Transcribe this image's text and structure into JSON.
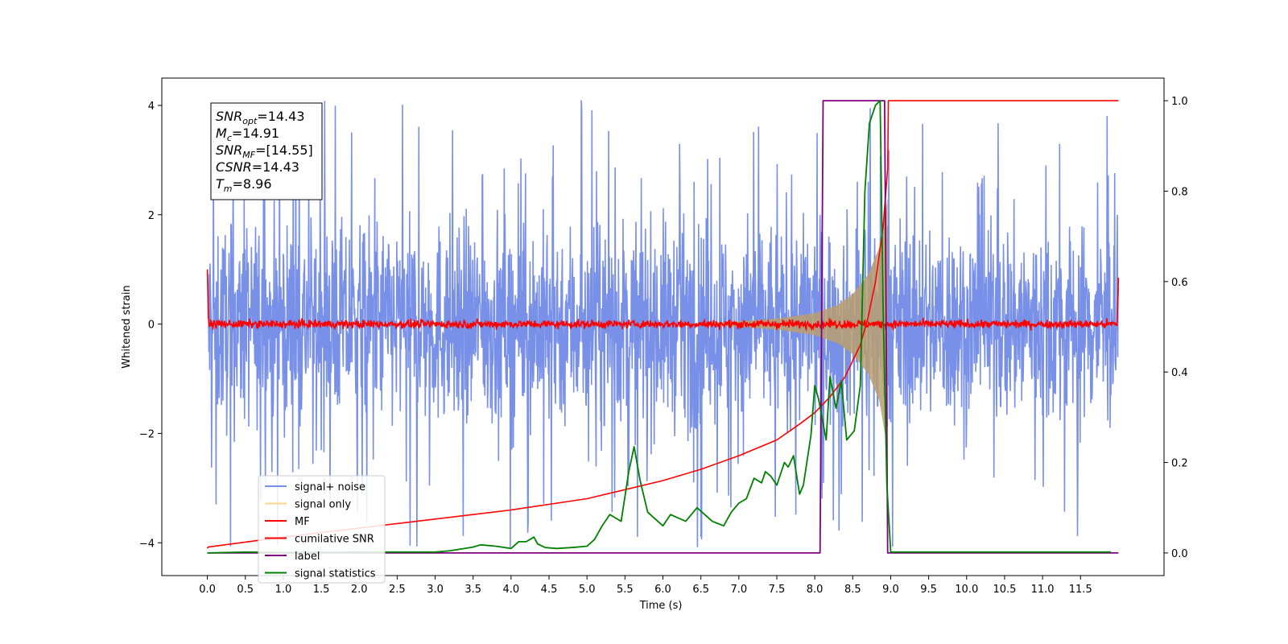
{
  "chart_data": {
    "type": "line",
    "title": "",
    "xlabel": "Time (s)",
    "ylabel": "Whitened strain",
    "y2label": "",
    "xlim": [
      -0.6,
      12.6
    ],
    "ylim": [
      -4.6,
      4.5
    ],
    "y2lim": [
      -0.05,
      1.05
    ],
    "x_tick_labels": [
      "0.0",
      "0.5",
      "1.0",
      "1.5",
      "2.0",
      "2.5",
      "3.0",
      "3.5",
      "4.0",
      "4.5",
      "5.0",
      "5.5",
      "6.0",
      "6.5",
      "7.0",
      "7.5",
      "8.0",
      "8.5",
      "9.0",
      "9.5",
      "10.0",
      "10.5",
      "11.0",
      "11.5"
    ],
    "y_tick_labels": [
      "4",
      "2",
      "0",
      "−2",
      "−4"
    ],
    "y2_tick_labels": [
      "1.0",
      "0.8",
      "0.6",
      "0.4",
      "0.2",
      "0.0"
    ],
    "grid": false,
    "legend_position": "lower left",
    "stats_box": [
      {
        "base": "SNR",
        "sub": "opt",
        "value": "=14.43"
      },
      {
        "base": "M",
        "sub": "c",
        "value": "=14.91"
      },
      {
        "base": "SNR",
        "sub": "MF",
        "value": "=[14.55]"
      },
      {
        "base": "CSNR",
        "sub": "",
        "value": "=14.43"
      },
      {
        "base": "T",
        "sub": "m",
        "value": "=8.96"
      }
    ],
    "series": [
      {
        "name": "signal+ noise",
        "color": "#7890e8",
        "axis": "left",
        "description": "noise band",
        "envelope_abs": 2.4,
        "peak_abs": 4.1,
        "t_range": [
          0,
          12
        ]
      },
      {
        "name": "signal only",
        "color": "#fdd58a",
        "axis": "left",
        "description": "chirp",
        "t_range": [
          0,
          8.96
        ],
        "envelope": {
          "x": [
            6.5,
            7.0,
            7.5,
            8.0,
            8.3,
            8.5,
            8.7,
            8.85,
            8.96
          ],
          "y": [
            0.02,
            0.05,
            0.1,
            0.2,
            0.35,
            0.55,
            0.9,
            1.4,
            2.3
          ]
        }
      },
      {
        "name": "MF",
        "color": "#ff0000",
        "axis": "left",
        "description": "matched filter output",
        "level": 0.0,
        "noise_abs": 0.12,
        "t_range": [
          0,
          12
        ]
      },
      {
        "name": "cumilative SNR",
        "color": "#ff0000",
        "axis": "right",
        "x": [
          0.0,
          0.01,
          1.0,
          2.0,
          3.0,
          4.0,
          5.0,
          5.5,
          6.0,
          6.5,
          7.0,
          7.5,
          7.8,
          8.0,
          8.2,
          8.4,
          8.6,
          8.7,
          8.8,
          8.9,
          8.96,
          8.97,
          12.0
        ],
        "y": [
          0.01,
          0.013,
          0.035,
          0.055,
          0.075,
          0.095,
          0.12,
          0.14,
          0.16,
          0.185,
          0.215,
          0.25,
          0.285,
          0.31,
          0.345,
          0.39,
          0.46,
          0.52,
          0.6,
          0.72,
          0.85,
          1.0,
          1.0
        ]
      },
      {
        "name": "label",
        "color": "#800080",
        "axis": "right",
        "x": [
          0.0,
          8.07,
          8.11,
          8.92,
          8.96,
          12.0
        ],
        "y": [
          0.0,
          0.0,
          1.0,
          1.0,
          0.0,
          0.0
        ]
      },
      {
        "name": "signal statistics",
        "color": "#008000",
        "axis": "right",
        "x": [
          0.0,
          0.5,
          1.0,
          2.0,
          3.0,
          3.2,
          3.5,
          3.6,
          3.8,
          4.0,
          4.1,
          4.2,
          4.3,
          4.35,
          4.45,
          4.6,
          4.8,
          5.0,
          5.1,
          5.2,
          5.3,
          5.45,
          5.55,
          5.62,
          5.7,
          5.8,
          5.9,
          6.0,
          6.1,
          6.3,
          6.45,
          6.55,
          6.65,
          6.8,
          6.9,
          7.0,
          7.1,
          7.2,
          7.3,
          7.35,
          7.42,
          7.5,
          7.6,
          7.65,
          7.72,
          7.8,
          7.85,
          7.95,
          8.0,
          8.05,
          8.15,
          8.2,
          8.28,
          8.35,
          8.42,
          8.52,
          8.6,
          8.66,
          8.72,
          8.8,
          8.86,
          8.9,
          8.95,
          9.0,
          9.05,
          10.0,
          11.0,
          11.9
        ],
        "y": [
          0.0,
          0.002,
          0.001,
          0.002,
          0.002,
          0.005,
          0.013,
          0.018,
          0.015,
          0.01,
          0.025,
          0.025,
          0.035,
          0.02,
          0.012,
          0.01,
          0.012,
          0.015,
          0.03,
          0.06,
          0.085,
          0.07,
          0.18,
          0.235,
          0.16,
          0.09,
          0.075,
          0.06,
          0.085,
          0.07,
          0.1,
          0.085,
          0.07,
          0.06,
          0.09,
          0.11,
          0.12,
          0.165,
          0.155,
          0.18,
          0.17,
          0.15,
          0.2,
          0.19,
          0.215,
          0.13,
          0.15,
          0.26,
          0.37,
          0.34,
          0.25,
          0.39,
          0.32,
          0.38,
          0.25,
          0.27,
          0.37,
          0.8,
          0.95,
          0.99,
          1.0,
          0.55,
          0.15,
          0.002,
          0.002,
          0.002,
          0.002,
          0.002
        ]
      }
    ]
  }
}
